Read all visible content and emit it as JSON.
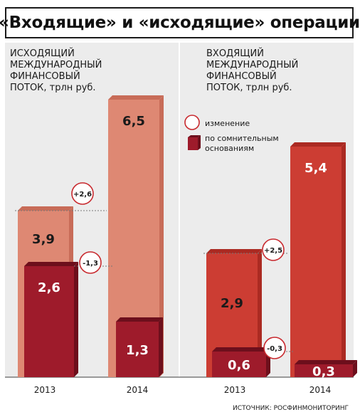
{
  "title": "«Входящие» и «исходящие» операции",
  "source": "ИСТОЧНИК: РОСФИНМОНИТОРИНГ",
  "colors": {
    "background_panel": "#ececec",
    "outgoing_total": "#de8873",
    "outgoing_total_side": "#c86c58",
    "incoming_total": "#cc3d33",
    "incoming_total_side": "#ab2a22",
    "doubtful": "#9e1b2b",
    "doubtful_side": "#6d0f1c",
    "change_circle": "#c8292e"
  },
  "legend": {
    "change_label": "изменение",
    "doubtful_label_line1": "по сомнительным",
    "doubtful_label_line2": "основаниям"
  },
  "chart_data": [
    {
      "type": "bar",
      "title_lines": [
        "ИСХОДЯЩИЙ",
        "МЕЖДУНАРОДНЫЙ",
        "ФИНАНСОВЫЙ",
        "ПОТОК, трлн руб."
      ],
      "categories": [
        "2013",
        "2014"
      ],
      "series": [
        {
          "name": "total",
          "values": [
            3.9,
            6.5
          ],
          "labels": [
            "3,9",
            "6,5"
          ]
        },
        {
          "name": "по сомнительным основаниям",
          "values": [
            2.6,
            1.3
          ],
          "labels": [
            "2,6",
            "1,3"
          ]
        }
      ],
      "changes": {
        "total": "+2,6",
        "doubtful": "-1,3"
      },
      "ylim": [
        0,
        7.5
      ]
    },
    {
      "type": "bar",
      "title_lines": [
        "ВХОДЯЩИЙ",
        "МЕЖДУНАРОДНЫЙ",
        "ФИНАНСОВЫЙ",
        "ПОТОК, трлн руб."
      ],
      "categories": [
        "2013",
        "2014"
      ],
      "series": [
        {
          "name": "total",
          "values": [
            2.9,
            5.4
          ],
          "labels": [
            "2,9",
            "5,4"
          ]
        },
        {
          "name": "по сомнительным основаниям",
          "values": [
            0.6,
            0.3
          ],
          "labels": [
            "0,6",
            "0,3"
          ]
        }
      ],
      "changes": {
        "total": "+2,5",
        "doubtful": "-0,3"
      },
      "ylim": [
        0,
        7.5
      ]
    }
  ]
}
